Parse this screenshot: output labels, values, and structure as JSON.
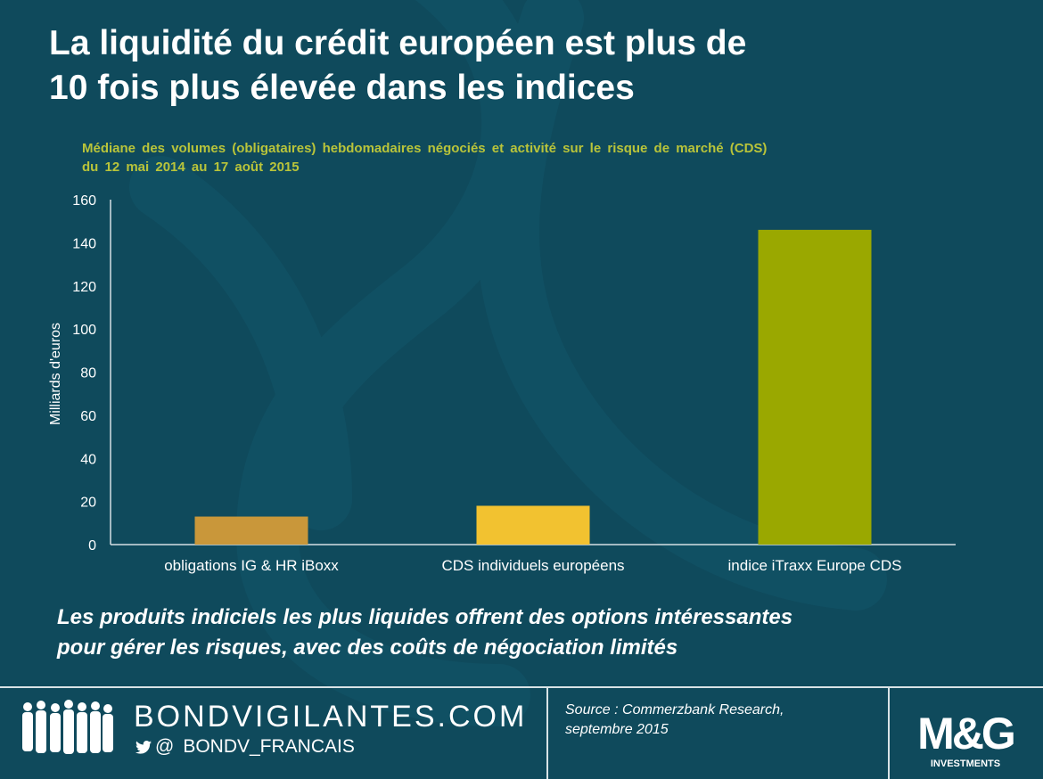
{
  "headline": {
    "line1": "La liquidité du crédit européen est plus de",
    "line2": "10 fois plus élevée dans les indices"
  },
  "subtitle": {
    "line1": "Médiane des volumes (obligataires) hebdomadaires négociés et activité sur le risque de marché (CDS)",
    "line2": "du 12 mai 2014 au 17 août 2015"
  },
  "chart_data": {
    "type": "bar",
    "categories": [
      "obligations IG & HR iBoxx",
      "CDS individuels européens",
      "indice iTraxx Europe CDS"
    ],
    "values": [
      13,
      18,
      146
    ],
    "bar_colors": [
      "#c9973a",
      "#f2c230",
      "#9aa800"
    ],
    "ylabel": "Milliards d'euros",
    "xlabel": "",
    "ylim": [
      0,
      160
    ],
    "yticks": [
      0,
      20,
      40,
      60,
      80,
      100,
      120,
      140,
      160
    ],
    "grid": false,
    "legend": "none"
  },
  "takeaway": {
    "line1": "Les produits indiciels les plus liquides offrent des options intéressantes",
    "line2": "pour gérer les risques, avec des coûts de négociation limités"
  },
  "footer": {
    "site": "BONDVIGILANTES.COM",
    "handle_at": "@",
    "handle": "BONDV_FRANCAIS",
    "source_line1": "Source : Commerzbank Research,",
    "source_line2": "septembre 2015",
    "logo_text": "M&G",
    "logo_sub": "INVESTMENTS",
    "icons": [
      "people-silhouettes-icon",
      "twitter-bird-icon"
    ]
  },
  "colors": {
    "background": "#0f4a5c",
    "subtitle": "#b9c43a",
    "text": "#ffffff"
  }
}
